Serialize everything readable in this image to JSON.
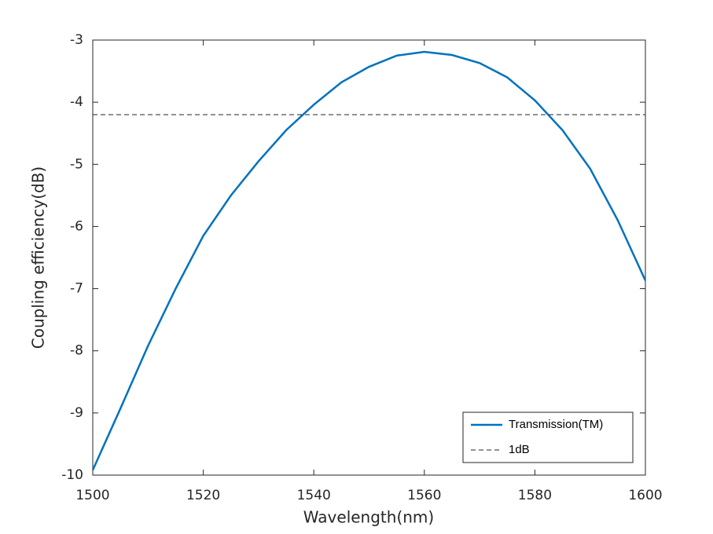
{
  "chart_data": {
    "type": "line",
    "xlabel": "Wavelength(nm)",
    "ylabel": "Coupling efficiency(dB)",
    "xlim": [
      1500,
      1600
    ],
    "xticks": [
      1500,
      1520,
      1540,
      1560,
      1580,
      1600
    ],
    "ylim": [
      -10,
      -3
    ],
    "yticks": [
      -10,
      -9,
      -8,
      -7,
      -6,
      -5,
      -4,
      -3
    ],
    "legend": "lower right",
    "series": [
      {
        "name": "Transmission(TM)",
        "color": "#0072bd",
        "style": "solid",
        "x": [
          1500,
          1505,
          1510,
          1515,
          1520,
          1525,
          1530,
          1535,
          1540,
          1545,
          1550,
          1555,
          1560,
          1565,
          1570,
          1575,
          1580,
          1585,
          1590,
          1595,
          1600
        ],
        "values": [
          -9.92,
          -8.93,
          -7.92,
          -7.0,
          -6.15,
          -5.5,
          -4.95,
          -4.45,
          -4.04,
          -3.68,
          -3.43,
          -3.25,
          -3.19,
          -3.24,
          -3.37,
          -3.6,
          -3.97,
          -4.45,
          -5.07,
          -5.9,
          -6.87
        ]
      },
      {
        "name": "1dB",
        "color": "#262626",
        "style": "dashed",
        "x": [
          1500,
          1600
        ],
        "values": [
          -4.2,
          -4.2
        ]
      }
    ]
  }
}
